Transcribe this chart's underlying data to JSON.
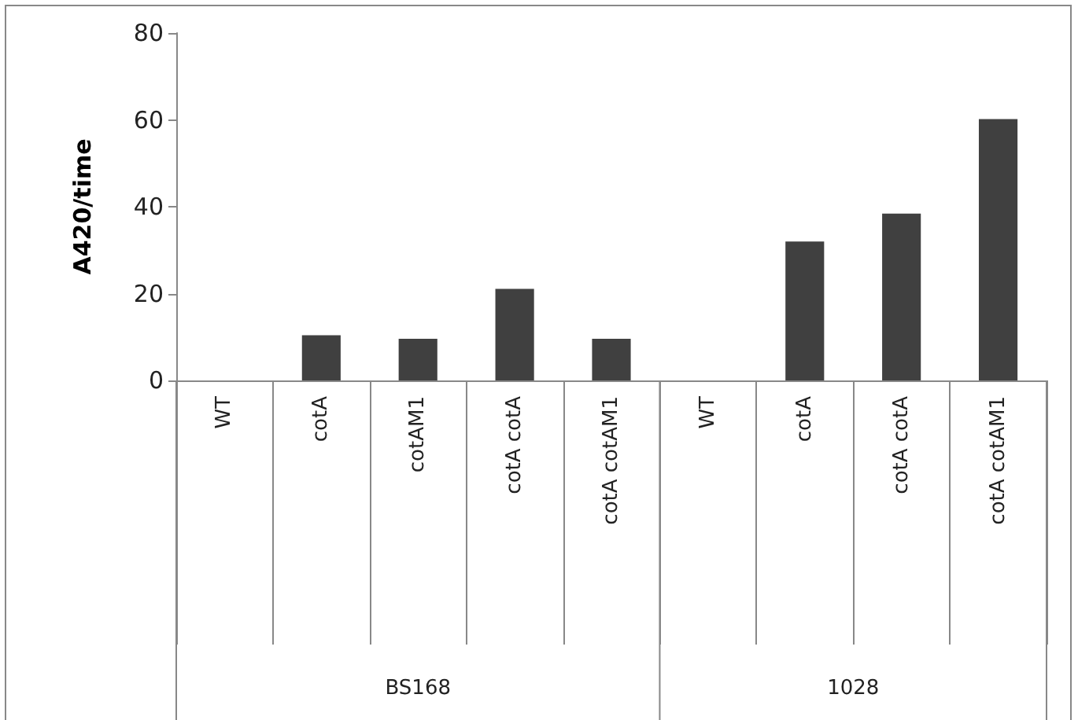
{
  "chart_data": {
    "type": "bar",
    "ylabel": "A420/time",
    "categories": [
      "WT",
      "cotA",
      "cotAM1",
      "cotA cotA",
      "cotA cotAM1",
      "WT",
      "cotA",
      "cotA cotA",
      "cotA cotAM1"
    ],
    "values": [
      0,
      10.4,
      9.6,
      21.1,
      9.6,
      0,
      32,
      38.4,
      60.2
    ],
    "color": "#404040",
    "ylim": [
      0,
      80
    ],
    "yticks": [
      0,
      20,
      40,
      60,
      80
    ],
    "annotations": [
      "BS168",
      "1028"
    ]
  }
}
